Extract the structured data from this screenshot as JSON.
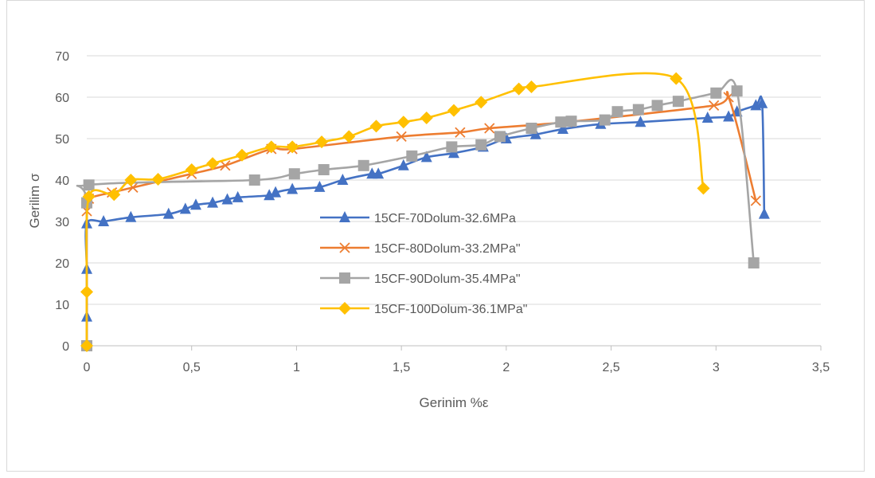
{
  "chart_data": {
    "type": "scatter",
    "title": "",
    "xlabel": "Gerinim %ε",
    "ylabel": "Gerilim σ",
    "xlim": [
      0,
      3.5
    ],
    "ylim": [
      0,
      70
    ],
    "x_ticks": [
      "0",
      "0,5",
      "1",
      "1,5",
      "2",
      "2,5",
      "3",
      "3,5"
    ],
    "y_ticks": [
      "0",
      "10",
      "20",
      "30",
      "40",
      "50",
      "60",
      "70"
    ],
    "grid": "horizontal",
    "legend_position": "center",
    "series": [
      {
        "name": "15CF-70Dolum-32.6MPa",
        "color": "#4472c4",
        "marker": "triangle",
        "x": [
          0,
          0,
          0,
          0,
          0.08,
          0.21,
          0.39,
          0.47,
          0.52,
          0.6,
          0.67,
          0.72,
          0.87,
          0.9,
          0.98,
          1.11,
          1.22,
          1.36,
          1.39,
          1.51,
          1.62,
          1.75,
          1.89,
          2.0,
          2.14,
          2.27,
          2.45,
          2.64,
          2.96,
          3.06,
          3.1,
          3.19,
          3.22,
          3.23
        ],
        "y": [
          0,
          7,
          18.5,
          29.5,
          30,
          31,
          31.8,
          33,
          34,
          34.5,
          35.3,
          35.8,
          36.3,
          37,
          37.8,
          38.3,
          40,
          41.5,
          41.5,
          43.5,
          45.5,
          46.5,
          48,
          50,
          51,
          52.3,
          53.5,
          54,
          55,
          55.3,
          56.5,
          58,
          58.5,
          31.8
        ]
      },
      {
        "name": "15CF-80Dolum-33.2MPa\"",
        "color": "#ed7d31",
        "marker": "cross",
        "x": [
          0,
          0,
          0.01,
          0.12,
          0.22,
          0.5,
          0.66,
          0.88,
          0.98,
          1.5,
          1.78,
          1.92,
          2.29,
          2.99,
          3.06,
          3.19
        ],
        "y": [
          0,
          32.5,
          35.5,
          37,
          38.2,
          41.5,
          43.5,
          47.5,
          47.5,
          50.5,
          51.5,
          52.5,
          54,
          58,
          60,
          35
        ]
      },
      {
        "name": "15CF-90Dolum-35.4MPa\"",
        "color": "#a5a5a5",
        "marker": "square",
        "x": [
          0,
          0,
          0.01,
          0.8,
          0.99,
          1.13,
          1.32,
          1.55,
          1.74,
          1.88,
          1.97,
          2.12,
          2.26,
          2.31,
          2.47,
          2.53,
          2.63,
          2.72,
          2.82,
          3.0,
          3.1,
          3.18
        ],
        "y": [
          0,
          34.5,
          38.8,
          40,
          41.5,
          42.5,
          43.5,
          45.8,
          48,
          48.5,
          50.5,
          52.5,
          54,
          54.2,
          54.5,
          56.5,
          57,
          58,
          59,
          61,
          61.5,
          20
        ]
      },
      {
        "name": "15CF-100Dolum-36.1MPa\"",
        "color": "#ffc000",
        "marker": "diamond",
        "x": [
          0,
          0,
          0.01,
          0.13,
          0.21,
          0.34,
          0.5,
          0.6,
          0.74,
          0.88,
          0.98,
          1.12,
          1.25,
          1.38,
          1.51,
          1.62,
          1.75,
          1.88,
          2.06,
          2.12,
          2.81,
          2.94
        ],
        "y": [
          0,
          13,
          36,
          36.5,
          40,
          40.2,
          42.5,
          44,
          46,
          48,
          48,
          49.2,
          50.5,
          53,
          54,
          55,
          56.8,
          58.8,
          62,
          62.5,
          64.5,
          38
        ]
      }
    ]
  }
}
